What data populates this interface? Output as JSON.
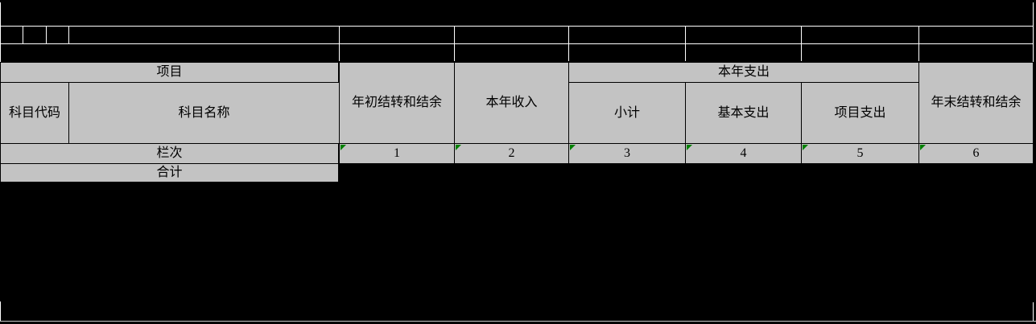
{
  "colors": {
    "bg": "#000000",
    "cell-bg": "#c3c3c3",
    "cell-border": "#000000",
    "grid-line": "#ffffff",
    "bottom-line": "#c9c9c9",
    "triangle": "#008000",
    "text": "#000000"
  },
  "table": {
    "header": {
      "project_group": "项目",
      "subject_code": "科目代码",
      "subject_name": "科目名称",
      "beginning_balance": "年初结转和结余",
      "current_year_income": "本年收入",
      "current_year_expenditure_group": "本年支出",
      "subtotal": "小计",
      "basic_expenditure": "基本支出",
      "project_expenditure": "项目支出",
      "ending_balance": "年末结转和结余"
    },
    "column_index_row": {
      "label": "栏次",
      "indexes": [
        "1",
        "2",
        "3",
        "4",
        "5",
        "6"
      ]
    },
    "total_row": {
      "label": "合计"
    }
  }
}
